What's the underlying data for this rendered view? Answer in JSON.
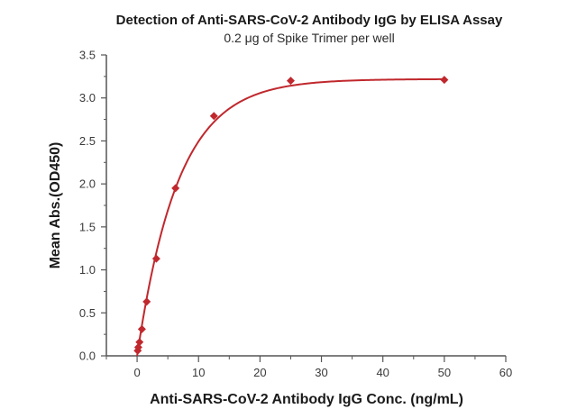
{
  "chart_data": {
    "type": "scatter",
    "title": "Detection of Anti-SARS-CoV-2 Antibody IgG by ELISA Assay",
    "subtitle": "0.2 μg of Spike Trimer  per well",
    "xlabel": "Anti-SARS-CoV-2 Antibody IgG Conc. (ng/mL)",
    "ylabel": "Mean Abs.(OD450)",
    "xlim": [
      -5,
      60
    ],
    "ylim": [
      0,
      3.5
    ],
    "xticks": [
      0,
      10,
      20,
      30,
      40,
      50,
      60
    ],
    "xtick_labels": [
      "0",
      "10",
      "20",
      "30",
      "40",
      "50",
      "60"
    ],
    "yticks": [
      0,
      0.5,
      1.0,
      1.5,
      2.0,
      2.5,
      3.0,
      3.5
    ],
    "ytick_labels": [
      "0.0",
      "0.5",
      "1.0",
      "1.5",
      "2.0",
      "2.5",
      "3.0",
      "3.5"
    ],
    "grid": false,
    "legend": null,
    "series": [
      {
        "name": "Mean Abs.(OD450)",
        "marker": "diamond",
        "color": "#C0282D",
        "x": [
          0.098,
          0.195,
          0.39,
          0.78,
          1.5625,
          3.125,
          6.25,
          12.5,
          25,
          50
        ],
        "y": [
          0.06,
          0.1,
          0.16,
          0.31,
          0.63,
          1.13,
          1.95,
          2.79,
          3.2,
          3.21
        ]
      }
    ],
    "fit_curve": {
      "name": "fitted curve",
      "color": "#C0282D",
      "model": "saturation",
      "top": 3.22,
      "rate": 0.149
    }
  }
}
